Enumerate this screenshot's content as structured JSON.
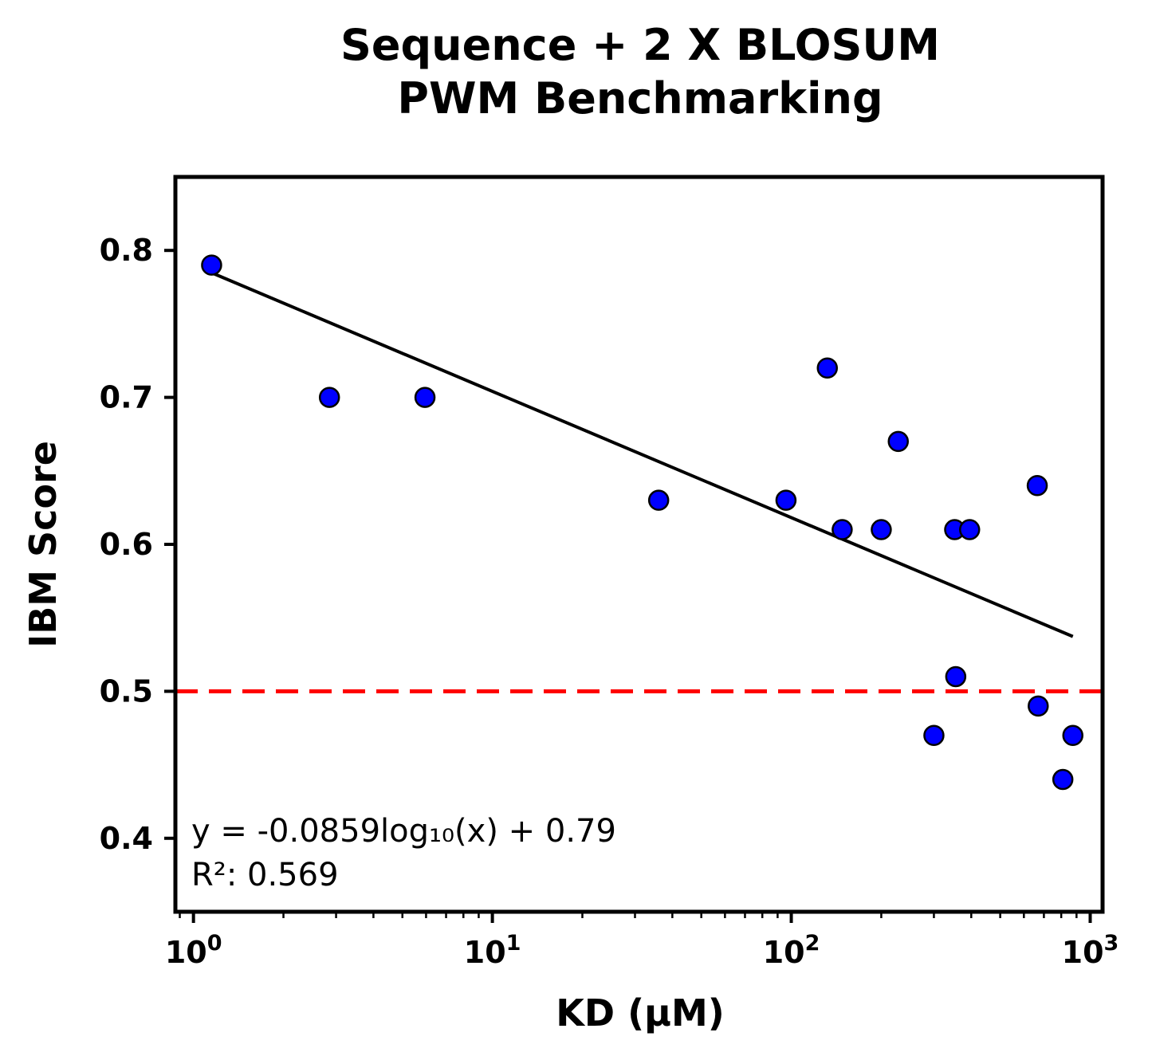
{
  "chart_data": {
    "type": "scatter",
    "title_lines": [
      "Sequence + 2 X BLOSUM",
      "PWM Benchmarking"
    ],
    "xlabel": "KD (μM)",
    "ylabel": "IBM Score",
    "xscale": "log",
    "xlim": [
      0.87,
      1100
    ],
    "ylim": [
      0.35,
      0.85
    ],
    "x_ticks": [
      {
        "value": 1,
        "base": "10",
        "exp": "0"
      },
      {
        "value": 10,
        "base": "10",
        "exp": "1"
      },
      {
        "value": 100,
        "base": "10",
        "exp": "2"
      },
      {
        "value": 1000,
        "base": "10",
        "exp": "3"
      }
    ],
    "y_ticks": [
      {
        "value": 0.4,
        "label": "0.4"
      },
      {
        "value": 0.5,
        "label": "0.5"
      },
      {
        "value": 0.6,
        "label": "0.6"
      },
      {
        "value": 0.7,
        "label": "0.7"
      },
      {
        "value": 0.8,
        "label": "0.8"
      }
    ],
    "points": [
      {
        "x": 1.15,
        "y": 0.79
      },
      {
        "x": 2.85,
        "y": 0.7
      },
      {
        "x": 5.95,
        "y": 0.7
      },
      {
        "x": 36,
        "y": 0.63
      },
      {
        "x": 96,
        "y": 0.63
      },
      {
        "x": 132,
        "y": 0.72
      },
      {
        "x": 148,
        "y": 0.61
      },
      {
        "x": 200,
        "y": 0.61
      },
      {
        "x": 228,
        "y": 0.67
      },
      {
        "x": 300,
        "y": 0.47
      },
      {
        "x": 352,
        "y": 0.61
      },
      {
        "x": 355,
        "y": 0.51
      },
      {
        "x": 395,
        "y": 0.61
      },
      {
        "x": 665,
        "y": 0.64
      },
      {
        "x": 670,
        "y": 0.49
      },
      {
        "x": 810,
        "y": 0.44
      },
      {
        "x": 875,
        "y": 0.47
      }
    ],
    "fit": {
      "slope": -0.0859,
      "intercept": 0.79,
      "x_range": [
        1.15,
        875
      ]
    },
    "reference_line": {
      "y": 0.5,
      "style": "dashed"
    },
    "annotation_lines": [
      "y = -0.0859log₁₀(x) + 0.79",
      "R²: 0.569"
    ],
    "grid": false,
    "legend": "none",
    "colors": {
      "point_fill": "#0000ff",
      "point_edge": "#000000",
      "fit_line": "#000000",
      "reference_line": "#ff0000",
      "axes": "#000000"
    }
  }
}
